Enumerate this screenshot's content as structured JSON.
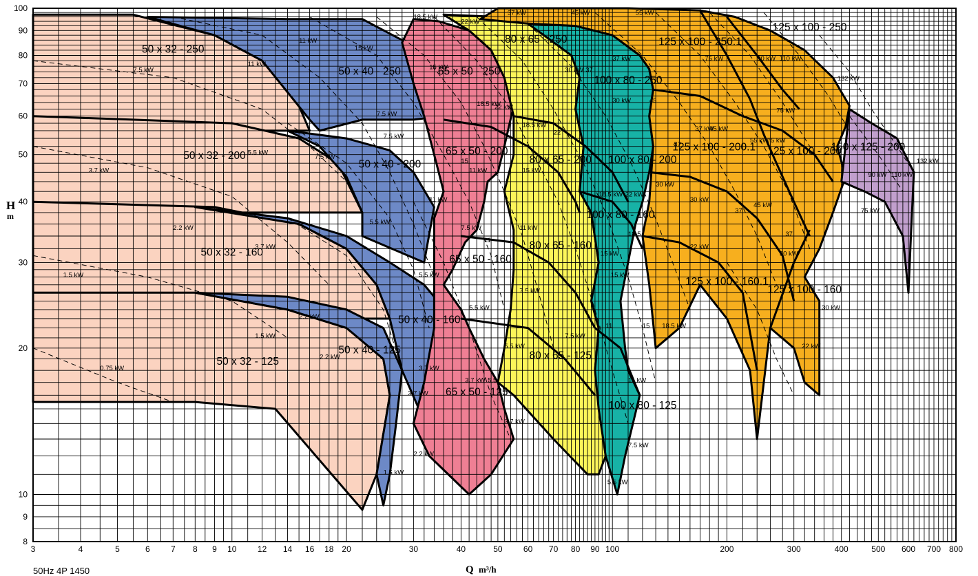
{
  "chart_data": {
    "type": "area",
    "title": "",
    "xlabel": "Q",
    "xunit": "m³/h",
    "ylabel": "H",
    "yunit": "m",
    "xscale": "log",
    "yscale": "log",
    "xlim": [
      3,
      800
    ],
    "ylim": [
      8,
      100
    ],
    "grid": true,
    "x_ticks": [
      3,
      4,
      5,
      6,
      7,
      8,
      9,
      10,
      12,
      14,
      16,
      18,
      20,
      30,
      40,
      50,
      60,
      70,
      80,
      90,
      100,
      200,
      300,
      400,
      500,
      600,
      700,
      800
    ],
    "y_ticks": [
      8,
      9,
      10,
      20,
      30,
      40,
      50,
      60,
      70,
      80,
      90,
      100
    ],
    "footer": "50Hz  4P    1450",
    "colors": {
      "50x32": "#fbd3c0",
      "50x40": "#6d89c7",
      "65x50": "#ef7f94",
      "80x65": "#fcf55a",
      "100x80": "#17b2a6",
      "125x100": "#f7af1e",
      "150x125": "#c19fcd"
    },
    "series": [
      {
        "name": "50 x 32 - 250",
        "family": "50x32",
        "q_min": 3,
        "q_max": 16,
        "h_shutoff": 97,
        "h_end": 56,
        "poly": [
          [
            3,
            97
          ],
          [
            5.5,
            97
          ],
          [
            9,
            88
          ],
          [
            12,
            78
          ],
          [
            14.5,
            67
          ],
          [
            16,
            56
          ],
          [
            3,
            56
          ]
        ],
        "label_at": [
          7,
          81
        ]
      },
      {
        "name": "50 x 32 - 200",
        "family": "50x32",
        "q_min": 3,
        "q_max": 22,
        "h_shutoff": 60,
        "h_end": 38,
        "poly": [
          [
            3,
            60
          ],
          [
            10,
            58
          ],
          [
            15,
            54
          ],
          [
            19,
            48
          ],
          [
            22,
            38
          ],
          [
            3,
            38
          ]
        ],
        "label_at": [
          9,
          49
        ]
      },
      {
        "name": "50 x 32 - 160",
        "family": "50x32",
        "q_min": 3,
        "q_max": 26,
        "h_shutoff": 40,
        "h_end": 23,
        "poly": [
          [
            3,
            40
          ],
          [
            9,
            39
          ],
          [
            15,
            36
          ],
          [
            20,
            32
          ],
          [
            24,
            27
          ],
          [
            26,
            23
          ],
          [
            3,
            23
          ]
        ],
        "label_at": [
          10,
          31
        ]
      },
      {
        "name": "50 x 32 - 125",
        "family": "50x32",
        "q_min": 3,
        "q_max": 26,
        "h_shutoff": 26,
        "h_end": 10,
        "poly": [
          [
            3,
            26
          ],
          [
            8,
            26
          ],
          [
            14,
            24
          ],
          [
            20,
            22
          ],
          [
            25,
            19
          ],
          [
            26,
            16
          ],
          [
            24,
            11
          ],
          [
            22,
            9.3
          ],
          [
            13,
            15
          ],
          [
            8,
            15.5
          ],
          [
            3,
            15.5
          ]
        ],
        "label_at": [
          11,
          18.5
        ]
      },
      {
        "name": "50 x 40 - 250",
        "family": "50x40",
        "q_min": 16,
        "q_max": 36,
        "h_shutoff": 96,
        "h_end": 56,
        "poly": [
          [
            6,
            96
          ],
          [
            14,
            95
          ],
          [
            22,
            95
          ],
          [
            28,
            86
          ],
          [
            33,
            72
          ],
          [
            36,
            60
          ],
          [
            30,
            59
          ],
          [
            22,
            59
          ],
          [
            17,
            56
          ],
          [
            16,
            59
          ],
          [
            12,
            78
          ],
          [
            9,
            88
          ]
        ],
        "label_at": [
          23,
          73
        ]
      },
      {
        "name": "50 x 40 - 200",
        "family": "50x40",
        "q_min": 16,
        "q_max": 34,
        "h_shutoff": 56,
        "h_end": 32,
        "poly": [
          [
            14,
            56
          ],
          [
            20,
            54
          ],
          [
            26,
            51
          ],
          [
            30,
            46
          ],
          [
            34,
            39
          ],
          [
            32,
            30
          ],
          [
            22,
            34
          ],
          [
            22,
            38
          ],
          [
            20,
            45
          ],
          [
            17,
            52
          ]
        ],
        "label_at": [
          26,
          47
        ]
      },
      {
        "name": "50 x 40 - 160",
        "family": "50x40",
        "q_min": 8,
        "q_max": 40,
        "h_shutoff": 39,
        "h_end": 16,
        "poly": [
          [
            8,
            39
          ],
          [
            14,
            37
          ],
          [
            20,
            34
          ],
          [
            26,
            30
          ],
          [
            32,
            27
          ],
          [
            38,
            23
          ],
          [
            40,
            20
          ],
          [
            31,
            15
          ],
          [
            28,
            18
          ],
          [
            26,
            23
          ],
          [
            24,
            27
          ],
          [
            20,
            32
          ],
          [
            15,
            36
          ]
        ],
        "label_at": [
          33,
          22.5
        ]
      },
      {
        "name": "50 x 40 - 125",
        "family": "50x40",
        "q_min": 8,
        "q_max": 28,
        "h_shutoff": 26,
        "h_end": 9,
        "poly": [
          [
            8,
            26
          ],
          [
            14,
            25.5
          ],
          [
            20,
            24
          ],
          [
            25,
            22
          ],
          [
            28,
            18
          ],
          [
            27,
            14
          ],
          [
            26,
            11
          ],
          [
            25,
            9.5
          ],
          [
            24,
            11
          ],
          [
            26,
            16
          ],
          [
            25,
            19
          ],
          [
            20,
            22
          ],
          [
            14,
            24
          ]
        ],
        "label_at": [
          23,
          19.5
        ]
      }
    ],
    "families": [
      {
        "name": "65 x 50 - 250",
        "family": "65x50",
        "label_at": [
          42,
          73
        ]
      },
      {
        "name": "65 x 50 - 200",
        "family": "65x50",
        "label_at": [
          44,
          50
        ]
      },
      {
        "name": "65 x 50 - 160",
        "family": "65x50",
        "label_at": [
          45,
          30
        ]
      },
      {
        "name": "65 x 50 - 125",
        "family": "65x50",
        "label_at": [
          44,
          16
        ]
      },
      {
        "name": "80 x 65 - 250",
        "family": "80x65",
        "label_at": [
          63,
          85
        ]
      },
      {
        "name": "80 x 65 - 200",
        "family": "80x65",
        "label_at": [
          73,
          48
        ]
      },
      {
        "name": "80 x 65 - 160",
        "family": "80x65",
        "label_at": [
          73,
          32
        ]
      },
      {
        "name": "80 x 65 - 125",
        "family": "80x65",
        "label_at": [
          73,
          19
        ]
      },
      {
        "name": "100 x 80 - 250",
        "family": "100x80",
        "label_at": [
          110,
          70
        ]
      },
      {
        "name": "100 x 80 - 200",
        "family": "100x80",
        "label_at": [
          120,
          48
        ]
      },
      {
        "name": "100 x 80 - 160",
        "family": "100x80",
        "label_at": [
          105,
          37
        ]
      },
      {
        "name": "100 x 80 - 125",
        "family": "100x80",
        "label_at": [
          120,
          15
        ]
      },
      {
        "name": "125 x 100 - 250.1",
        "family": "125x100",
        "label_at": [
          170,
          84
        ]
      },
      {
        "name": "125 x 100 - 250",
        "family": "125x100",
        "label_at": [
          330,
          90
        ]
      },
      {
        "name": "125 x 100 - 200.1",
        "family": "125x100",
        "label_at": [
          185,
          51
        ]
      },
      {
        "name": "125 x 100 - 200",
        "family": "125x100",
        "label_at": [
          320,
          50
        ]
      },
      {
        "name": "125 x 100 - 160.1",
        "family": "125x100",
        "label_at": [
          200,
          27
        ]
      },
      {
        "name": "125 x 100 - 160",
        "family": "125x100",
        "label_at": [
          320,
          26
        ]
      },
      {
        "name": "150 x 125 - 200",
        "family": "150x125",
        "label_at": [
          470,
          51
        ]
      }
    ],
    "power_curves": [
      {
        "kw": "0.75 kW",
        "at": [
          4.5,
          18
        ]
      },
      {
        "kw": "1.5 kW",
        "at": [
          3.6,
          28
        ]
      },
      {
        "kw": "2.2 kW",
        "at": [
          7,
          35
        ]
      },
      {
        "kw": "3.7 kW",
        "at": [
          4.2,
          46
        ]
      },
      {
        "kw": "7.5 kW",
        "at": [
          5.5,
          74
        ]
      },
      {
        "kw": "11 kW",
        "at": [
          11,
          76
        ]
      },
      {
        "kw": "5.5 kW",
        "at": [
          11,
          50
        ]
      },
      {
        "kw": "3.7 kW",
        "at": [
          11.5,
          32
        ]
      },
      {
        "kw": "1.5 kW",
        "at": [
          11.5,
          21
        ]
      },
      {
        "kw": "2.2 kW",
        "at": [
          17,
          19
        ]
      },
      {
        "kw": "7.5 kW",
        "at": [
          16.5,
          49
        ]
      },
      {
        "kw": "2.2 kW",
        "at": [
          15,
          23
        ]
      },
      {
        "kw": "11 kW",
        "at": [
          15,
          85
        ]
      },
      {
        "kw": "15 kW",
        "at": [
          21,
          82
        ]
      },
      {
        "kw": "7.5 kW",
        "at": [
          25,
          54
        ]
      },
      {
        "kw": "7.5 kW",
        "at": [
          24,
          60
        ]
      },
      {
        "kw": "5.5 kW",
        "at": [
          23,
          36
        ]
      },
      {
        "kw": "5.5 kW",
        "at": [
          31,
          28
        ]
      },
      {
        "kw": "3.7 kW",
        "at": [
          29,
          16
        ]
      },
      {
        "kw": "1.5 kW",
        "at": [
          25,
          11
        ]
      },
      {
        "kw": "3.7 kW",
        "at": [
          31,
          18
        ]
      },
      {
        "kw": "2.2 kW",
        "at": [
          30,
          12
        ]
      },
      {
        "kw": "11 kW",
        "at": [
          33,
          40
        ]
      },
      {
        "kw": "18.5 kW",
        "at": [
          30,
          95
        ]
      },
      {
        "kw": "22 kW",
        "at": [
          40,
          93
        ]
      },
      {
        "kw": "15 kW",
        "at": [
          33,
          75
        ]
      },
      {
        "kw": "18.5 kW",
        "at": [
          44,
          63
        ]
      },
      {
        "kw": "22 kW",
        "at": [
          49,
          62
        ]
      },
      {
        "kw": "11 kW",
        "at": [
          42,
          46
        ]
      },
      {
        "kw": "15",
        "at": [
          40,
          48
        ]
      },
      {
        "kw": "7.5 kW",
        "at": [
          40,
          35
        ]
      },
      {
        "kw": "11",
        "at": [
          46,
          33
        ]
      },
      {
        "kw": "5.5 kW",
        "at": [
          42,
          24
        ]
      },
      {
        "kw": "3.7 kW",
        "at": [
          41,
          17
        ]
      },
      {
        "kw": "5.5",
        "at": [
          47,
          17
        ]
      },
      {
        "kw": "22",
        "at": [
          70,
          55
        ]
      },
      {
        "kw": "18.5 kW",
        "at": [
          58,
          57
        ]
      },
      {
        "kw": "15 kW",
        "at": [
          58,
          46
        ]
      },
      {
        "kw": "11 kW",
        "at": [
          57,
          35
        ]
      },
      {
        "kw": "7.5 kW",
        "at": [
          57,
          26
        ]
      },
      {
        "kw": "5.5 kW",
        "at": [
          52,
          20
        ]
      },
      {
        "kw": "3.7 kW",
        "at": [
          52,
          14
        ]
      },
      {
        "kw": "7.5 kW",
        "at": [
          75,
          21
        ]
      },
      {
        "kw": "15 kW",
        "at": [
          93,
          31
        ]
      },
      {
        "kw": "15 kW",
        "at": [
          99,
          28
        ]
      },
      {
        "kw": "30 kW",
        "at": [
          75,
          74
        ]
      },
      {
        "kw": "37",
        "at": [
          85,
          74
        ]
      },
      {
        "kw": "37 kW",
        "at": [
          53,
          97
        ]
      },
      {
        "kw": "45 kW",
        "at": [
          78,
          97
        ]
      },
      {
        "kw": "55 kW",
        "at": [
          115,
          97
        ]
      },
      {
        "kw": "37 kW",
        "at": [
          100,
          78
        ]
      },
      {
        "kw": "30 kW",
        "at": [
          100,
          64
        ]
      },
      {
        "kw": "45",
        "at": [
          125,
          64
        ]
      },
      {
        "kw": "18.5 kW",
        "at": [
          92,
          41
        ]
      },
      {
        "kw": "22 kW",
        "at": [
          108,
          41
        ]
      },
      {
        "kw": "30 kW",
        "at": [
          130,
          43
        ]
      },
      {
        "kw": "30 kW",
        "at": [
          160,
          40
        ]
      },
      {
        "kw": "18.5",
        "at": [
          110,
          34
        ]
      },
      {
        "kw": "11",
        "at": [
          96,
          22
        ]
      },
      {
        "kw": "15",
        "at": [
          120,
          22
        ]
      },
      {
        "kw": "18.5 kW",
        "at": [
          135,
          22
        ]
      },
      {
        "kw": "22 kW",
        "at": [
          160,
          32
        ]
      },
      {
        "kw": "11 kW",
        "at": [
          110,
          17
        ]
      },
      {
        "kw": "7.5 kW",
        "at": [
          110,
          12.5
        ]
      },
      {
        "kw": "5.5 kW",
        "at": [
          97,
          10.5
        ]
      },
      {
        "kw": "75 kW",
        "at": [
          175,
          78
        ]
      },
      {
        "kw": "90 kW",
        "at": [
          240,
          78
        ]
      },
      {
        "kw": "110 kW",
        "at": [
          275,
          78
        ]
      },
      {
        "kw": "132 kW",
        "at": [
          390,
          71
        ]
      },
      {
        "kw": "75 kW",
        "at": [
          270,
          61
        ]
      },
      {
        "kw": "37 kW",
        "at": [
          165,
          56
        ]
      },
      {
        "kw": "45 kW",
        "at": [
          180,
          56
        ]
      },
      {
        "kw": "55 kW",
        "at": [
          230,
          53
        ]
      },
      {
        "kw": "75 kW",
        "at": [
          255,
          53
        ]
      },
      {
        "kw": "37",
        "at": [
          145,
          52
        ]
      },
      {
        "kw": "45 kW",
        "at": [
          235,
          39
        ]
      },
      {
        "kw": "37",
        "at": [
          210,
          38
        ]
      },
      {
        "kw": "37",
        "at": [
          285,
          34
        ]
      },
      {
        "kw": "30 kW",
        "at": [
          275,
          31
        ]
      },
      {
        "kw": "30 kW",
        "at": [
          355,
          24
        ]
      },
      {
        "kw": "22 kW",
        "at": [
          315,
          20
        ]
      },
      {
        "kw": "90 kW",
        "at": [
          470,
          45
        ]
      },
      {
        "kw": "110 kW",
        "at": [
          540,
          45
        ]
      },
      {
        "kw": "132 kW",
        "at": [
          630,
          48
        ]
      },
      {
        "kw": "75 kW",
        "at": [
          450,
          38
        ]
      }
    ]
  }
}
